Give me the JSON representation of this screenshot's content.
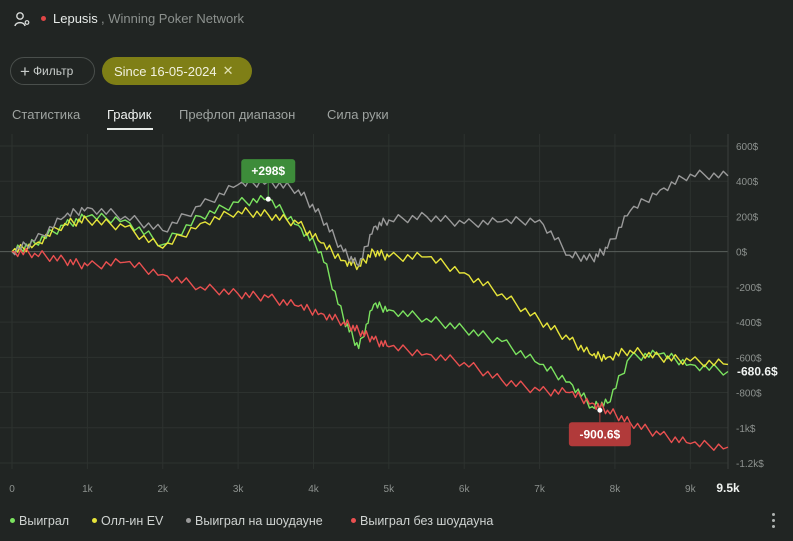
{
  "header": {
    "player_name": "Lepusis",
    "network": ", Winning Poker Network",
    "user_icon": "user-settings-icon"
  },
  "filters": {
    "filter_label": "Фильтр",
    "since_label": "Since 16-05-2024"
  },
  "tabs": [
    {
      "label": "Статистика",
      "active": false
    },
    {
      "label": "График",
      "active": true
    },
    {
      "label": "Префлоп диапазон",
      "active": false
    },
    {
      "label": "Сила руки",
      "active": false
    }
  ],
  "colors": {
    "won": "#7be35f",
    "allin_ev": "#e6e43a",
    "showdown": "#9a9a9a",
    "non_showdown": "#ea5050",
    "max_label_bg": "#3d8c3a",
    "min_label_bg": "#b13a3a"
  },
  "chart_data": {
    "type": "line",
    "x_ticks": [
      "0",
      "1k",
      "2k",
      "3k",
      "4k",
      "5k",
      "6k",
      "7k",
      "8k",
      "9k",
      "9.5k"
    ],
    "y_ticks": [
      "600$",
      "400$",
      "200$",
      "0$",
      "-200$",
      "-400$",
      "-600$",
      "-800$",
      "-1k$",
      "-1.2k$"
    ],
    "y_tick_values": [
      600,
      400,
      200,
      0,
      -200,
      -400,
      -600,
      -800,
      -1000,
      -1200
    ],
    "xlim": [
      0,
      9500
    ],
    "ylim": [
      -1200,
      600
    ],
    "grid": true,
    "legend_position": "bottom-left",
    "series": [
      {
        "name": "Выиграл",
        "color": "#7be35f",
        "x": [
          0,
          300,
          700,
          1000,
          1500,
          2000,
          2500,
          3000,
          3400,
          3800,
          4100,
          4400,
          4600,
          4800,
          5000,
          5500,
          6000,
          6500,
          7000,
          7400,
          7700,
          7900,
          8200,
          8600,
          9000,
          9500
        ],
        "values": [
          0,
          50,
          150,
          200,
          180,
          40,
          200,
          280,
          298,
          150,
          0,
          -380,
          -550,
          -300,
          -330,
          -380,
          -440,
          -510,
          -640,
          -740,
          -880,
          -860,
          -600,
          -580,
          -640,
          -680.6
        ]
      },
      {
        "name": "Олл-ин EV",
        "color": "#e6e43a",
        "x": [
          0,
          300,
          700,
          1000,
          1500,
          2000,
          2500,
          3000,
          3400,
          3800,
          4100,
          4400,
          4600,
          4800,
          5000,
          5500,
          6000,
          6500,
          7000,
          7400,
          7700,
          7900,
          8200,
          8600,
          9000,
          9500
        ],
        "values": [
          0,
          40,
          160,
          180,
          140,
          20,
          160,
          230,
          210,
          160,
          50,
          -50,
          -80,
          0,
          -30,
          -30,
          -120,
          -240,
          -390,
          -500,
          -590,
          -600,
          -560,
          -600,
          -620,
          -640
        ]
      },
      {
        "name": "Выиграл на шоудауне",
        "color": "#9a9a9a",
        "x": [
          0,
          300,
          700,
          1000,
          1500,
          2000,
          2500,
          3000,
          3400,
          3800,
          4100,
          4400,
          4600,
          4800,
          5000,
          5500,
          6000,
          6500,
          7000,
          7400,
          7700,
          7900,
          8200,
          8600,
          9000,
          9500
        ],
        "values": [
          0,
          60,
          200,
          250,
          200,
          120,
          260,
          380,
          398,
          350,
          200,
          0,
          -80,
          140,
          180,
          200,
          160,
          170,
          180,
          -20,
          -40,
          20,
          230,
          350,
          440,
          430
        ]
      },
      {
        "name": "Выиграл без шоудауна",
        "color": "#ea5050",
        "x": [
          0,
          300,
          700,
          1000,
          1500,
          2000,
          2500,
          3000,
          3400,
          3800,
          4100,
          4400,
          4600,
          4800,
          5000,
          5500,
          6000,
          6500,
          7000,
          7400,
          7700,
          7900,
          8200,
          8600,
          9000,
          9500
        ],
        "values": [
          0,
          -10,
          -50,
          -80,
          -60,
          -130,
          -200,
          -240,
          -260,
          -310,
          -350,
          -400,
          -450,
          -500,
          -540,
          -580,
          -630,
          -730,
          -790,
          -800,
          -860,
          -900,
          -970,
          -1040,
          -1090,
          -1110
        ]
      }
    ],
    "annotations": [
      {
        "text": "+298$",
        "x": 3400,
        "y": 298,
        "kind": "max"
      },
      {
        "text": "-900.6$",
        "x": 7800,
        "y": -900.6,
        "kind": "min"
      }
    ],
    "end_value_label": "-680.6$"
  },
  "footer": {
    "more_icon": "more-vertical-icon"
  }
}
